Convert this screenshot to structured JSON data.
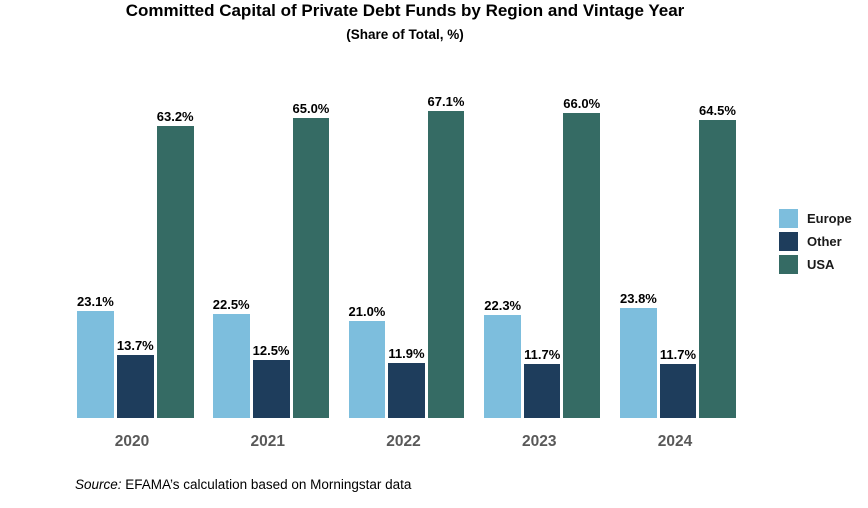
{
  "title": "Committed Capital of Private Debt Funds by Region and Vintage Year",
  "subtitle": "(Share of Total, %)",
  "source": {
    "prefix": "Source:",
    "text": " EFAMA’s calculation based on Morningstar data"
  },
  "colors": {
    "europe": "#7DBEDD",
    "other": "#1E3D5C",
    "usa": "#356B64",
    "axis_label": "#595959"
  },
  "chart_data": {
    "type": "bar",
    "title": "Committed Capital of Private Debt Funds by Region and Vintage Year",
    "subtitle": "(Share of Total, %)",
    "categories": [
      "2020",
      "2021",
      "2022",
      "2023",
      "2024"
    ],
    "series": [
      {
        "name": "Europe",
        "color": "#7DBEDD",
        "values": [
          23.1,
          22.5,
          21.0,
          22.3,
          23.8
        ]
      },
      {
        "name": "Other",
        "color": "#1E3D5C",
        "values": [
          13.7,
          12.5,
          11.9,
          11.7,
          11.7
        ]
      },
      {
        "name": "USA",
        "color": "#356B64",
        "values": [
          63.2,
          65.0,
          67.1,
          66.0,
          64.5
        ]
      }
    ],
    "value_suffix": "%",
    "value_labels": true,
    "xlabel": "",
    "ylabel": "",
    "ylim": [
      0,
      70
    ],
    "grid": false,
    "y_axis_visible": false,
    "legend_position": "right"
  }
}
